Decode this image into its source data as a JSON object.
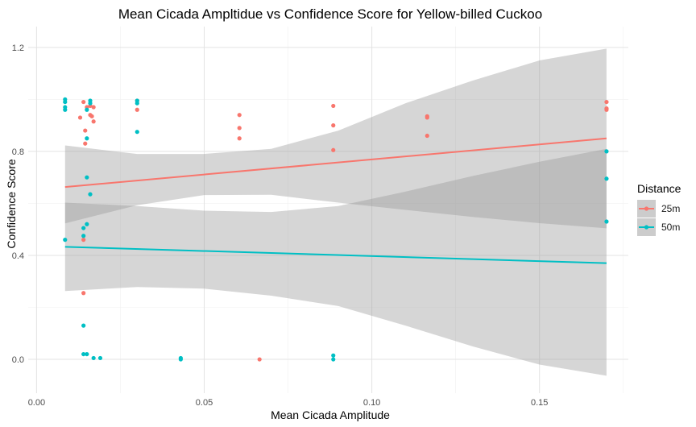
{
  "chart_data": {
    "type": "scatter",
    "title": "Mean Cicada Ampltidue vs Confidence Score for Yellow-billed Cuckoo",
    "xlabel": "Mean Cicada Amplitude",
    "ylabel": "Confidence Score",
    "xlim": [
      -0.0025,
      0.1765
    ],
    "ylim": [
      -0.13,
      1.28
    ],
    "x_ticks": [
      0.0,
      0.05,
      0.1,
      0.15
    ],
    "x_tick_labels": [
      "0.00",
      "0.05",
      "0.10",
      "0.15"
    ],
    "y_ticks": [
      0.0,
      0.4,
      0.8,
      1.2
    ],
    "y_tick_labels": [
      "0.0",
      "0.4",
      "0.8",
      "1.2"
    ],
    "grid": true,
    "legend": {
      "title": "Distance",
      "position": "right"
    },
    "series": [
      {
        "name": "25m",
        "color": "#F8766D",
        "points": [
          [
            0.014,
            0.99
          ],
          [
            0.015,
            0.97
          ],
          [
            0.016,
            0.975
          ],
          [
            0.017,
            0.97
          ],
          [
            0.013,
            0.93
          ],
          [
            0.016,
            0.94
          ],
          [
            0.0165,
            0.935
          ],
          [
            0.017,
            0.915
          ],
          [
            0.0145,
            0.88
          ],
          [
            0.0145,
            0.83
          ],
          [
            0.014,
            0.46
          ],
          [
            0.014,
            0.255
          ],
          [
            0.03,
            0.995
          ],
          [
            0.03,
            0.96
          ],
          [
            0.0605,
            0.94
          ],
          [
            0.0605,
            0.89
          ],
          [
            0.0605,
            0.85
          ],
          [
            0.0665,
            0.0
          ],
          [
            0.0885,
            0.975
          ],
          [
            0.0885,
            0.9
          ],
          [
            0.0885,
            0.805
          ],
          [
            0.1165,
            0.935
          ],
          [
            0.1165,
            0.93
          ],
          [
            0.1165,
            0.86
          ],
          [
            0.17,
            0.99
          ],
          [
            0.17,
            0.965
          ],
          [
            0.17,
            0.96
          ]
        ],
        "fit": {
          "x": [
            0.0085,
            0.17
          ],
          "y": [
            0.663,
            0.85
          ]
        }
      },
      {
        "name": "50m",
        "color": "#00BFC4",
        "points": [
          [
            0.0085,
            1.0
          ],
          [
            0.0085,
            0.99
          ],
          [
            0.0085,
            0.97
          ],
          [
            0.0085,
            0.96
          ],
          [
            0.0085,
            0.46
          ],
          [
            0.016,
            0.995
          ],
          [
            0.016,
            0.985
          ],
          [
            0.015,
            0.96
          ],
          [
            0.015,
            0.85
          ],
          [
            0.015,
            0.7
          ],
          [
            0.016,
            0.635
          ],
          [
            0.015,
            0.52
          ],
          [
            0.014,
            0.505
          ],
          [
            0.014,
            0.475
          ],
          [
            0.014,
            0.13
          ],
          [
            0.014,
            0.02
          ],
          [
            0.015,
            0.02
          ],
          [
            0.017,
            0.005
          ],
          [
            0.019,
            0.005
          ],
          [
            0.03,
            0.995
          ],
          [
            0.03,
            0.985
          ],
          [
            0.03,
            0.875
          ],
          [
            0.043,
            0.005
          ],
          [
            0.043,
            0.0
          ],
          [
            0.0885,
            0.015
          ],
          [
            0.0885,
            0.0
          ],
          [
            0.17,
            0.8
          ],
          [
            0.17,
            0.695
          ],
          [
            0.17,
            0.53
          ]
        ],
        "fit": {
          "x": [
            0.0085,
            0.17
          ],
          "y": [
            0.433,
            0.37
          ]
        }
      }
    ],
    "confidence_bands": [
      {
        "series": "25m",
        "x": [
          0.0085,
          0.03,
          0.05,
          0.07,
          0.09,
          0.11,
          0.13,
          0.15,
          0.17
        ],
        "lower": [
          0.523,
          0.593,
          0.632,
          0.633,
          0.603,
          0.575,
          0.548,
          0.524,
          0.504
        ],
        "upper": [
          0.823,
          0.79,
          0.79,
          0.81,
          0.88,
          0.985,
          1.072,
          1.15,
          1.195
        ]
      },
      {
        "series": "50m",
        "x": [
          0.0085,
          0.03,
          0.05,
          0.07,
          0.09,
          0.11,
          0.13,
          0.15,
          0.17
        ],
        "lower": [
          0.263,
          0.278,
          0.272,
          0.245,
          0.205,
          0.13,
          0.05,
          -0.02,
          -0.063
        ],
        "upper": [
          0.603,
          0.59,
          0.572,
          0.567,
          0.59,
          0.645,
          0.705,
          0.76,
          0.81
        ]
      }
    ]
  }
}
